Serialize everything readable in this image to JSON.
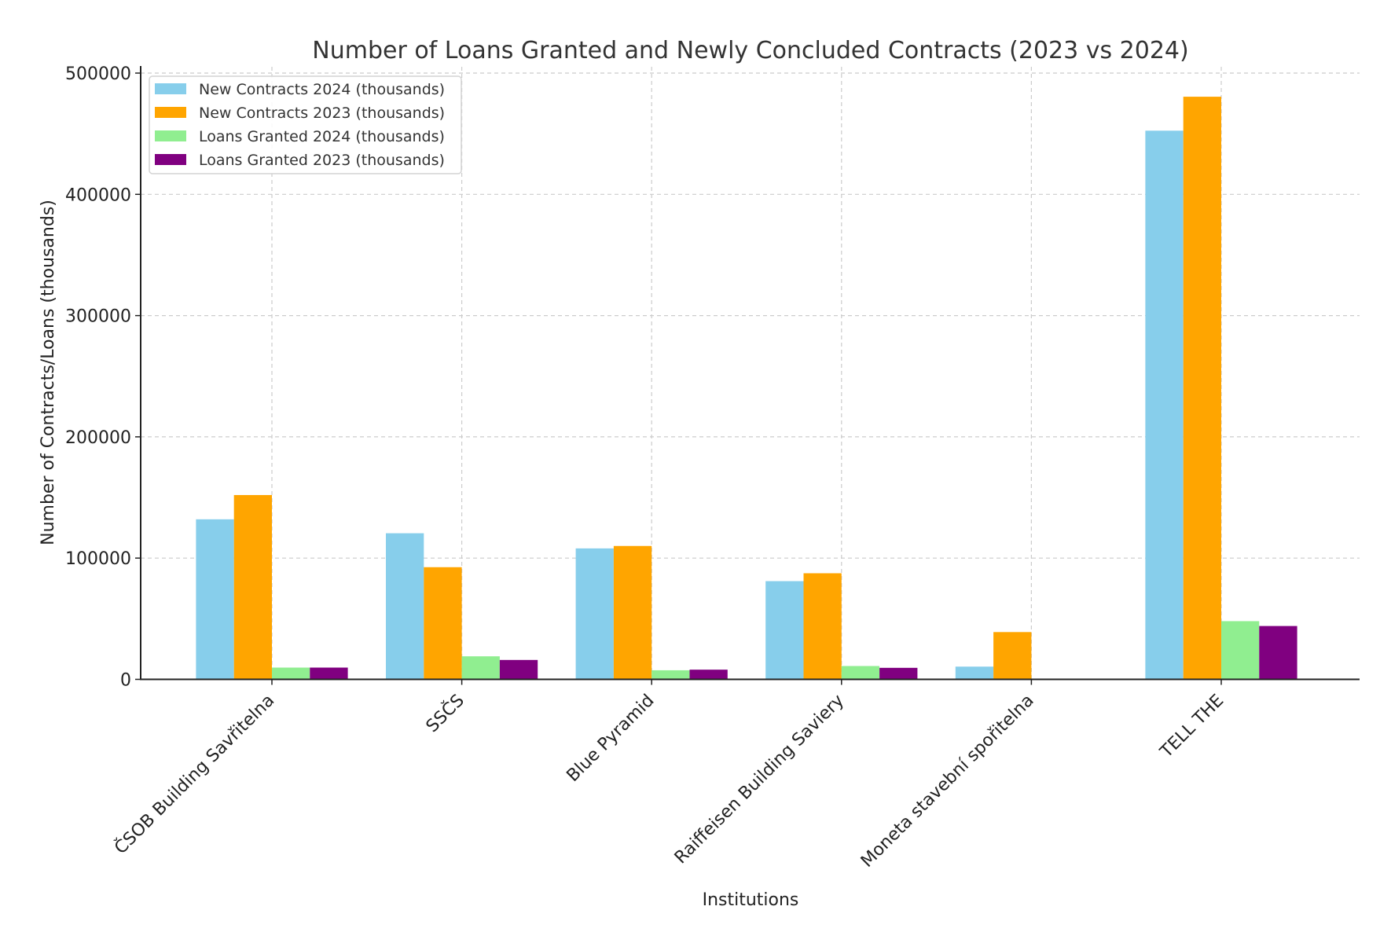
{
  "chart_data": {
    "type": "bar",
    "title": "Number of Loans Granted and Newly Concluded Contracts (2023 vs 2024)",
    "xlabel": "Institutions",
    "ylabel": "Number of Contracts/Loans (thousands)",
    "ylim": [
      0,
      500000
    ],
    "yticks": [
      "0",
      "100000",
      "200000",
      "300000",
      "400000",
      "500000"
    ],
    "ytick_values": [
      0,
      100000,
      200000,
      300000,
      400000,
      500000
    ],
    "grid": true,
    "legend_position": "top-left",
    "categories": [
      "ČSOB Building Savřitelna",
      "SSČS",
      "Blue Pyramid",
      "Raiffeisen Building Saviery",
      "Moneta stavební spořitelna",
      "TELL THE"
    ],
    "series": [
      {
        "name": "New Contracts 2024 (thousands)",
        "color": "#87ceeb",
        "values": [
          132000,
          120500,
          108000,
          81000,
          10500,
          452500
        ]
      },
      {
        "name": "New Contracts 2023 (thousands)",
        "color": "#ffa500",
        "values": [
          152000,
          92500,
          110000,
          87500,
          39000,
          480500
        ]
      },
      {
        "name": "Loans Granted 2024 (thousands)",
        "color": "#90ee90",
        "values": [
          9700,
          19000,
          7500,
          11000,
          0,
          48000
        ]
      },
      {
        "name": "Loans Granted 2023 (thousands)",
        "color": "#800080",
        "values": [
          9700,
          16000,
          8000,
          9500,
          500,
          44000
        ]
      }
    ]
  }
}
